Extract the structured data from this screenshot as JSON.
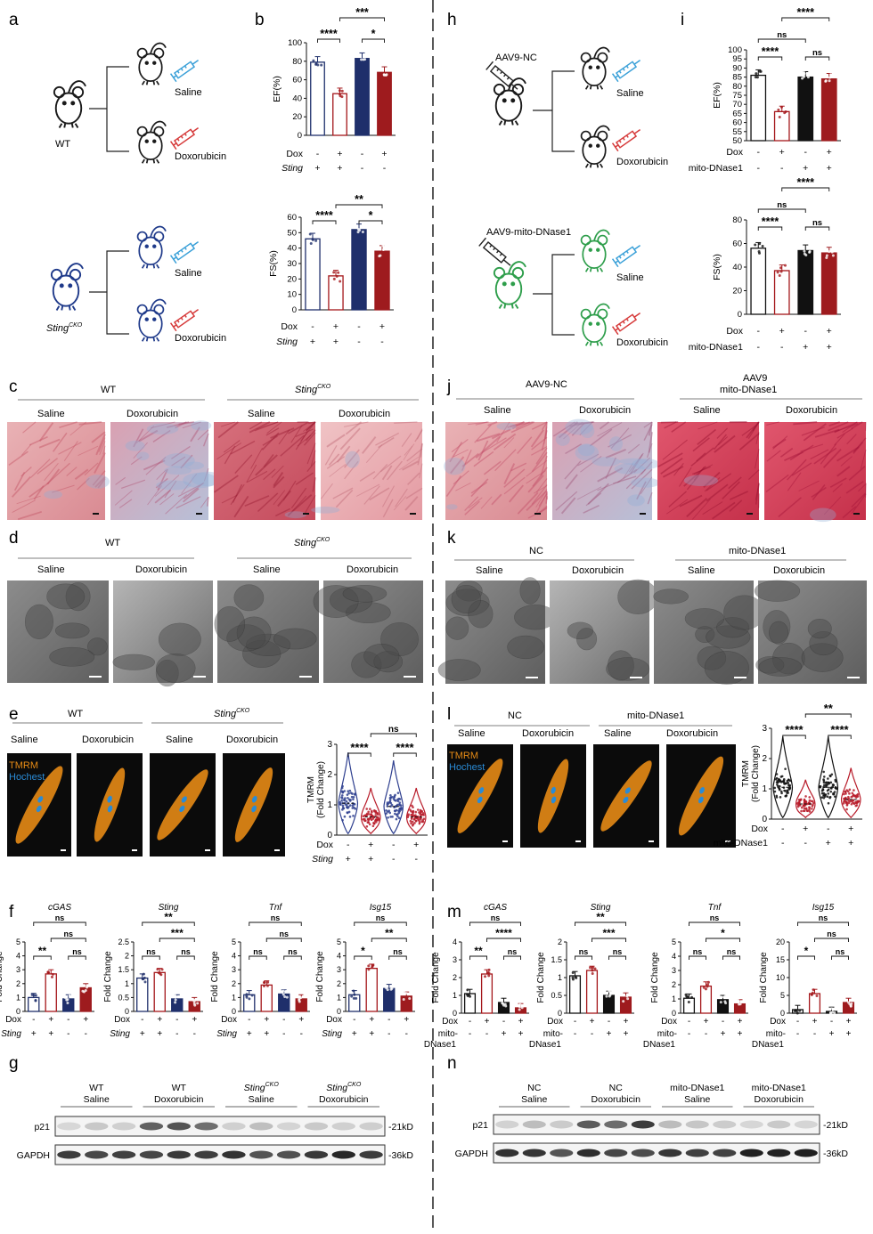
{
  "colors": {
    "saline_stroke": "#1f2f6b",
    "dox_stroke": "#a4161a",
    "black": "#111111",
    "sting_blue": "#1f2f6b",
    "sting_red": "#9e1b1e",
    "mouse_wt": "#1a1a1a",
    "mouse_cko": "#1f3a8a",
    "mouse_green": "#2e9e4b",
    "syringe_blue": "#3aa0d8",
    "syringe_red": "#d63a3a",
    "he_pink": "#e6a3a8",
    "he_dark": "#c9495a",
    "tem_gray": "#7a7a7a",
    "tmrm_orange": "#e58a15",
    "tmrm_bg": "#0b0b0b",
    "hoechst": "#2a8bd6",
    "violin_blue": "#2e3f8f",
    "violin_red": "#b81c2a"
  },
  "panels": {
    "a": {
      "letter": "a",
      "wt_label": "WT",
      "cko_label": "Sting",
      "cko_sup": "CKO",
      "saline": "Saline",
      "dox": "Doxorubicin"
    },
    "b": {
      "letter": "b"
    },
    "c": {
      "letter": "c",
      "wt": "WT",
      "cko": "Sting",
      "cko_sup": "CKO",
      "saline": "Saline",
      "dox": "Doxorubicin"
    },
    "d": {
      "letter": "d",
      "wt": "WT",
      "cko": "Sting",
      "cko_sup": "CKO",
      "saline": "Saline",
      "dox": "Doxorubicin"
    },
    "e": {
      "letter": "e",
      "wt": "WT",
      "cko": "Sting",
      "cko_sup": "CKO",
      "saline": "Saline",
      "dox": "Doxorubicin",
      "tmrm": "TMRM",
      "hoechst": "Hochest"
    },
    "f": {
      "letter": "f"
    },
    "g": {
      "letter": "g",
      "groups": [
        {
          "l1": "WT",
          "l2": "Saline",
          "sup": ""
        },
        {
          "l1": "WT",
          "l2": "Doxorubicin",
          "sup": ""
        },
        {
          "l1": "Sting",
          "l2": "Saline",
          "sup": "CKO"
        },
        {
          "l1": "Sting",
          "l2": "Doxorubicin",
          "sup": "CKO"
        }
      ],
      "rows": [
        "p21",
        "GAPDH"
      ],
      "sizes": [
        "-21kD",
        "-36kD"
      ]
    },
    "h": {
      "letter": "h",
      "nc": "AAV9-NC",
      "mito": "AAV9-mito-DNase1",
      "saline": "Saline",
      "dox": "Doxorubicin"
    },
    "i": {
      "letter": "i"
    },
    "j": {
      "letter": "j",
      "nc": "AAV9-NC",
      "mito1": "AAV9",
      "mito2": "mito-DNase1",
      "saline": "Saline",
      "dox": "Doxorubicin"
    },
    "k": {
      "letter": "k",
      "nc": "NC",
      "mito": "mito-DNase1",
      "saline": "Saline",
      "dox": "Doxorubicin"
    },
    "l": {
      "letter": "l",
      "nc": "NC",
      "mito": "mito-DNase1",
      "saline": "Saline",
      "dox": "Doxorubicin",
      "tmrm": "TMRM",
      "hoechst": "Hochest"
    },
    "m": {
      "letter": "m"
    },
    "n": {
      "letter": "n",
      "groups": [
        {
          "l1": "NC",
          "l2": "Saline"
        },
        {
          "l1": "NC",
          "l2": "Doxorubicin"
        },
        {
          "l1": "mito-DNase1",
          "l2": "Saline"
        },
        {
          "l1": "mito-DNase1",
          "l2": "Doxorubicin"
        }
      ],
      "rows": [
        "p21",
        "GAPDH"
      ],
      "sizes": [
        "-21kD",
        "-36kD"
      ]
    }
  },
  "chart_data": [
    {
      "id": "b_ef",
      "type": "bar",
      "ylabel": "EF(%)",
      "ylim": [
        0,
        100
      ],
      "yticks": [
        0,
        20,
        40,
        60,
        80,
        100
      ],
      "categories": [
        "WT Saline",
        "WT Dox",
        "StingCKO Saline",
        "StingCKO Dox"
      ],
      "values": [
        79,
        45,
        83,
        68
      ],
      "rows": [
        {
          "name": "Dox",
          "signs": [
            "-",
            "+",
            "-",
            "+"
          ]
        },
        {
          "name": "Sting",
          "italic": true,
          "signs": [
            "+",
            "+",
            "-",
            "-"
          ]
        }
      ],
      "sig": [
        {
          "a": 0,
          "b": 1,
          "t": "****"
        },
        {
          "a": 2,
          "b": 3,
          "t": "*"
        },
        {
          "a": 1,
          "b": 3,
          "t": "***"
        }
      ]
    },
    {
      "id": "b_fs",
      "type": "bar",
      "ylabel": "FS(%)",
      "ylim": [
        0,
        60
      ],
      "yticks": [
        0,
        10,
        20,
        30,
        40,
        50,
        60
      ],
      "categories": [
        "WT Saline",
        "WT Dox",
        "StingCKO Saline",
        "StingCKO Dox"
      ],
      "values": [
        46,
        22,
        52,
        38
      ],
      "rows": [
        {
          "name": "Dox",
          "signs": [
            "-",
            "+",
            "-",
            "+"
          ]
        },
        {
          "name": "Sting",
          "italic": true,
          "signs": [
            "+",
            "+",
            "-",
            "-"
          ]
        }
      ],
      "sig": [
        {
          "a": 0,
          "b": 1,
          "t": "****"
        },
        {
          "a": 2,
          "b": 3,
          "t": "*"
        },
        {
          "a": 1,
          "b": 3,
          "t": "**"
        }
      ]
    },
    {
      "id": "i_ef",
      "type": "bar",
      "ylabel": "EF(%)",
      "ylim": [
        50,
        100
      ],
      "yticks": [
        50,
        55,
        60,
        65,
        70,
        75,
        80,
        85,
        90,
        95,
        100
      ],
      "categories": [
        "NC Saline",
        "NC Dox",
        "mito Saline",
        "mito Dox"
      ],
      "values": [
        86,
        66,
        85,
        84
      ],
      "rows": [
        {
          "name": "Dox",
          "signs": [
            "-",
            "+",
            "-",
            "+"
          ]
        },
        {
          "name": "mito-DNase1",
          "signs": [
            "-",
            "-",
            "+",
            "+"
          ]
        }
      ],
      "sig": [
        {
          "a": 0,
          "b": 1,
          "t": "****"
        },
        {
          "a": 2,
          "b": 3,
          "t": "ns"
        },
        {
          "a": 0,
          "b": 2,
          "t": "ns"
        },
        {
          "a": 1,
          "b": 3,
          "t": "****"
        }
      ]
    },
    {
      "id": "i_fs",
      "type": "bar",
      "ylabel": "FS(%)",
      "ylim": [
        0,
        80
      ],
      "yticks": [
        0,
        20,
        40,
        60,
        80
      ],
      "categories": [
        "NC Saline",
        "NC Dox",
        "mito Saline",
        "mito Dox"
      ],
      "values": [
        56,
        37,
        54,
        52
      ],
      "rows": [
        {
          "name": "Dox",
          "signs": [
            "-",
            "+",
            "-",
            "+"
          ]
        },
        {
          "name": "mito-DNase1",
          "signs": [
            "-",
            "-",
            "+",
            "+"
          ]
        }
      ],
      "sig": [
        {
          "a": 0,
          "b": 1,
          "t": "****"
        },
        {
          "a": 2,
          "b": 3,
          "t": "ns"
        },
        {
          "a": 0,
          "b": 2,
          "t": "ns"
        },
        {
          "a": 1,
          "b": 3,
          "t": "****"
        }
      ]
    },
    {
      "id": "e_violin",
      "type": "violin",
      "ylabel": "TMRM",
      "ylabel2": "(Fold Change)",
      "ylim": [
        0,
        3
      ],
      "yticks": [
        0,
        1,
        2,
        3
      ],
      "medians": [
        1.05,
        0.6,
        0.95,
        0.6
      ],
      "rows": [
        {
          "name": "Dox",
          "signs": [
            "-",
            "+",
            "-",
            "+"
          ]
        },
        {
          "name": "Sting",
          "italic": true,
          "signs": [
            "+",
            "+",
            "-",
            "-"
          ]
        }
      ],
      "sig": [
        {
          "a": 0,
          "b": 1,
          "t": "****"
        },
        {
          "a": 2,
          "b": 3,
          "t": "****"
        },
        {
          "a": 1,
          "b": 3,
          "t": "ns"
        }
      ]
    },
    {
      "id": "l_violin",
      "type": "violin",
      "ylabel": "TMRM",
      "ylabel2": "(Fold Change)",
      "ylim": [
        0,
        3
      ],
      "yticks": [
        0,
        1,
        2,
        3
      ],
      "medians": [
        1.05,
        0.5,
        1.05,
        0.65
      ],
      "rows": [
        {
          "name": "Dox",
          "signs": [
            "-",
            "+",
            "-",
            "+"
          ]
        },
        {
          "name": "mito-DNase1",
          "signs": [
            "-",
            "-",
            "+",
            "+"
          ]
        }
      ],
      "sig": [
        {
          "a": 0,
          "b": 1,
          "t": "****"
        },
        {
          "a": 2,
          "b": 3,
          "t": "****"
        },
        {
          "a": 1,
          "b": 3,
          "t": "**"
        }
      ]
    },
    {
      "id": "f_cgas",
      "type": "bar",
      "title": "cGAS",
      "ylabel": "Fold Change",
      "ylim": [
        0,
        5
      ],
      "yticks": [
        0,
        1,
        2,
        3,
        4,
        5
      ],
      "values": [
        1.0,
        2.7,
        0.9,
        1.7
      ],
      "rows": [
        {
          "name": "Dox",
          "signs": [
            "-",
            "+",
            "-",
            "+"
          ]
        },
        {
          "name": "Sting",
          "italic": true,
          "signs": [
            "+",
            "+",
            "-",
            "-"
          ]
        }
      ],
      "sig": [
        {
          "a": 0,
          "b": 1,
          "t": "**"
        },
        {
          "a": 2,
          "b": 3,
          "t": "ns"
        },
        {
          "a": 1,
          "b": 3,
          "t": "ns"
        },
        {
          "a": 0,
          "b": 3,
          "t": "ns"
        }
      ]
    },
    {
      "id": "f_sting",
      "type": "bar",
      "title": "Sting",
      "ylabel": "Fold Change",
      "ylim": [
        0,
        2.5
      ],
      "yticks": [
        0,
        0.5,
        1.0,
        1.5,
        2.0,
        2.5
      ],
      "values": [
        1.2,
        1.4,
        0.45,
        0.35
      ],
      "rows": [
        {
          "name": "Dox",
          "signs": [
            "-",
            "+",
            "-",
            "+"
          ]
        },
        {
          "name": "Sting",
          "italic": true,
          "signs": [
            "+",
            "+",
            "-",
            "-"
          ]
        }
      ],
      "sig": [
        {
          "a": 0,
          "b": 1,
          "t": "ns"
        },
        {
          "a": 2,
          "b": 3,
          "t": "ns"
        },
        {
          "a": 1,
          "b": 3,
          "t": "***"
        },
        {
          "a": 0,
          "b": 3,
          "t": "**"
        }
      ]
    },
    {
      "id": "f_tnf",
      "type": "bar",
      "title": "Tnf",
      "ylabel": "Fold Change",
      "ylim": [
        0,
        5
      ],
      "yticks": [
        0,
        1,
        2,
        3,
        4,
        5
      ],
      "values": [
        1.2,
        1.9,
        1.25,
        0.9
      ],
      "rows": [
        {
          "name": "Dox",
          "signs": [
            "-",
            "+",
            "-",
            "+"
          ]
        },
        {
          "name": "Sting",
          "italic": true,
          "signs": [
            "+",
            "+",
            "-",
            "-"
          ]
        }
      ],
      "sig": [
        {
          "a": 0,
          "b": 1,
          "t": "ns"
        },
        {
          "a": 2,
          "b": 3,
          "t": "ns"
        },
        {
          "a": 1,
          "b": 3,
          "t": "ns"
        },
        {
          "a": 0,
          "b": 3,
          "t": "ns"
        }
      ]
    },
    {
      "id": "f_isg15",
      "type": "bar",
      "title": "Isg15",
      "ylabel": "Fold Change",
      "ylim": [
        0,
        5
      ],
      "yticks": [
        0,
        1,
        2,
        3,
        4,
        5
      ],
      "values": [
        1.2,
        3.1,
        1.65,
        1.1
      ],
      "rows": [
        {
          "name": "Dox",
          "signs": [
            "-",
            "+",
            "-",
            "+"
          ]
        },
        {
          "name": "Sting",
          "italic": true,
          "signs": [
            "+",
            "+",
            "-",
            "-"
          ]
        }
      ],
      "sig": [
        {
          "a": 0,
          "b": 1,
          "t": "*"
        },
        {
          "a": 2,
          "b": 3,
          "t": "ns"
        },
        {
          "a": 1,
          "b": 3,
          "t": "**"
        },
        {
          "a": 0,
          "b": 3,
          "t": "ns"
        }
      ]
    },
    {
      "id": "m_cgas",
      "type": "bar",
      "title": "cGAS",
      "ylabel": "Fold Change",
      "ylim": [
        0,
        4
      ],
      "yticks": [
        0,
        1,
        2,
        3,
        4
      ],
      "values": [
        1.1,
        2.2,
        0.6,
        0.3
      ],
      "rows": [
        {
          "name": "Dox",
          "signs": [
            "-",
            "+",
            "-",
            "+"
          ]
        },
        {
          "name": "mito-",
          "name2": "DNase1",
          "signs": [
            "-",
            "-",
            "+",
            "+"
          ]
        }
      ],
      "sig": [
        {
          "a": 0,
          "b": 1,
          "t": "**"
        },
        {
          "a": 2,
          "b": 3,
          "t": "ns"
        },
        {
          "a": 1,
          "b": 3,
          "t": "****"
        },
        {
          "a": 0,
          "b": 3,
          "t": "ns"
        }
      ]
    },
    {
      "id": "m_sting",
      "type": "bar",
      "title": "Sting",
      "ylabel": "Fold Change",
      "ylim": [
        0,
        2.0
      ],
      "yticks": [
        0,
        0.5,
        1.0,
        1.5,
        2.0
      ],
      "values": [
        1.05,
        1.2,
        0.5,
        0.45
      ],
      "rows": [
        {
          "name": "Dox",
          "signs": [
            "-",
            "+",
            "-",
            "+"
          ]
        },
        {
          "name": "mito-",
          "name2": "DNase1",
          "signs": [
            "-",
            "-",
            "+",
            "+"
          ]
        }
      ],
      "sig": [
        {
          "a": 0,
          "b": 1,
          "t": "ns"
        },
        {
          "a": 2,
          "b": 3,
          "t": "ns"
        },
        {
          "a": 1,
          "b": 3,
          "t": "***"
        },
        {
          "a": 0,
          "b": 3,
          "t": "**"
        }
      ]
    },
    {
      "id": "m_tnf",
      "type": "bar",
      "title": "Tnf",
      "ylabel": "Fold Change",
      "ylim": [
        0,
        5
      ],
      "yticks": [
        0,
        1,
        2,
        3,
        4,
        5
      ],
      "values": [
        1.05,
        1.9,
        0.95,
        0.65
      ],
      "rows": [
        {
          "name": "Dox",
          "signs": [
            "-",
            "+",
            "-",
            "+"
          ]
        },
        {
          "name": "mito-",
          "name2": "DNase1",
          "signs": [
            "-",
            "-",
            "+",
            "+"
          ]
        }
      ],
      "sig": [
        {
          "a": 0,
          "b": 1,
          "t": "ns"
        },
        {
          "a": 2,
          "b": 3,
          "t": "ns"
        },
        {
          "a": 1,
          "b": 3,
          "t": "*"
        },
        {
          "a": 0,
          "b": 3,
          "t": "ns"
        }
      ]
    },
    {
      "id": "m_isg15",
      "type": "bar",
      "title": "Isg15",
      "ylabel": "Fold Change",
      "ylim": [
        0,
        20
      ],
      "yticks": [
        0,
        5,
        10,
        15,
        20
      ],
      "values": [
        1.0,
        5.5,
        0.5,
        3.0
      ],
      "rows": [
        {
          "name": "Dox",
          "signs": [
            "-",
            "+",
            "-",
            "+"
          ]
        },
        {
          "name": "mito-",
          "name2": "DNase1",
          "signs": [
            "-",
            "-",
            "+",
            "+"
          ]
        }
      ],
      "sig": [
        {
          "a": 0,
          "b": 1,
          "t": "*"
        },
        {
          "a": 2,
          "b": 3,
          "t": "ns"
        },
        {
          "a": 1,
          "b": 3,
          "t": "ns"
        },
        {
          "a": 0,
          "b": 3,
          "t": "ns"
        }
      ]
    }
  ]
}
